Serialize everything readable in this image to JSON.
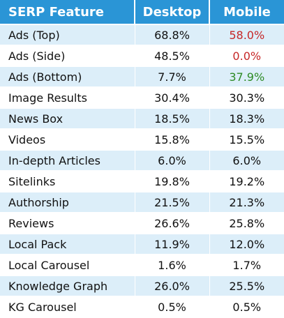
{
  "headers": {
    "feature": "SERP Feature",
    "desktop": "Desktop",
    "mobile": "Mobile"
  },
  "rows": [
    {
      "feature": "Ads (Top)",
      "desktop": "68.8%",
      "mobile": "58.0%",
      "mobile_color": "#c62828"
    },
    {
      "feature": "Ads (Side)",
      "desktop": "48.5%",
      "mobile": "0.0%",
      "mobile_color": "#c62828"
    },
    {
      "feature": "Ads (Bottom)",
      "desktop": "7.7%",
      "mobile": "37.9%",
      "mobile_color": "#2e8b26"
    },
    {
      "feature": "Image Results",
      "desktop": "30.4%",
      "mobile": "30.3%"
    },
    {
      "feature": "News Box",
      "desktop": "18.5%",
      "mobile": "18.3%"
    },
    {
      "feature": "Videos",
      "desktop": "15.8%",
      "mobile": "15.5%"
    },
    {
      "feature": "In-depth Articles",
      "desktop": "6.0%",
      "mobile": "6.0%"
    },
    {
      "feature": "Sitelinks",
      "desktop": "19.8%",
      "mobile": "19.2%"
    },
    {
      "feature": "Authorship",
      "desktop": "21.5%",
      "mobile": "21.3%"
    },
    {
      "feature": "Reviews",
      "desktop": "26.6%",
      "mobile": "25.8%"
    },
    {
      "feature": "Local Pack",
      "desktop": "11.9%",
      "mobile": "12.0%"
    },
    {
      "feature": "Local Carousel",
      "desktop": "1.6%",
      "mobile": "1.7%"
    },
    {
      "feature": "Knowledge Graph",
      "desktop": "26.0%",
      "mobile": "25.5%"
    },
    {
      "feature": "KG Carousel",
      "desktop": "0.5%",
      "mobile": "0.5%"
    }
  ],
  "colors": {
    "header_bg": "#2a95d6",
    "stripe_bg": "#dceef9",
    "decrease": "#c62828",
    "increase": "#2e8b26"
  }
}
